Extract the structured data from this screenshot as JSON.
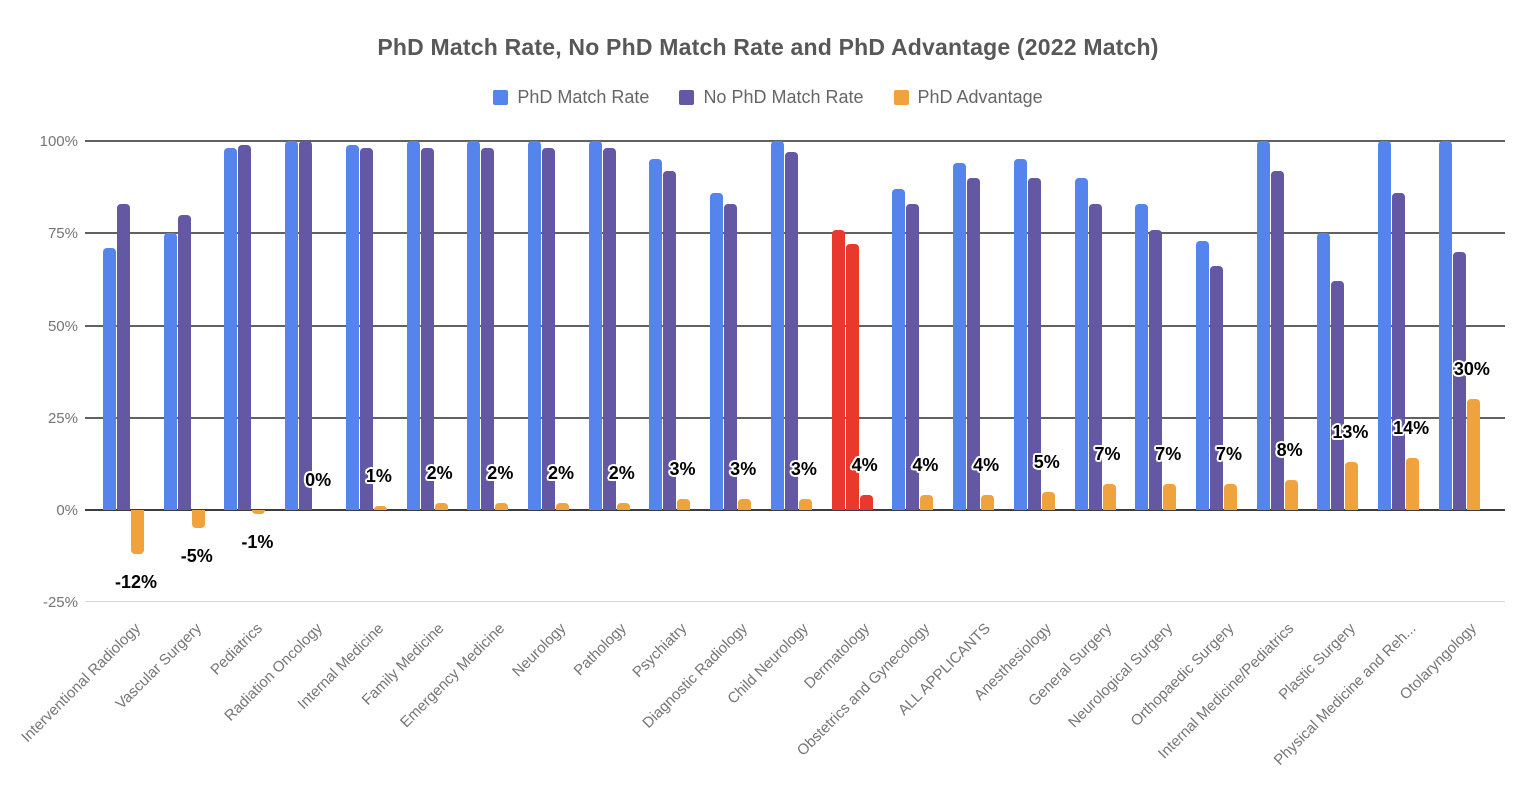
{
  "chart_data": {
    "type": "bar",
    "title": "PhD Match Rate, No PhD Match Rate and PhD Advantage (2022 Match)",
    "legend_position": "top",
    "grid": true,
    "categories": [
      "Interventional Radiology",
      "Vascular Surgery",
      "Pediatrics",
      "Radiation Oncology",
      "Internal Medicine",
      "Family Medicine",
      "Emergency Medicine",
      "Neurology",
      "Pathology",
      "Psychiatry",
      "Diagnostic Radiology",
      "Child Neurology",
      "Dermatology",
      "Obstetrics and Gynecology",
      "ALL APPLICANTS",
      "Anesthesiology",
      "General Surgery",
      "Neurological Surgery",
      "Orthopaedic Surgery",
      "Internal Medicine/Pediatrics",
      "Plastic Surgery",
      "Physical Medicine and Reh...",
      "Otolaryngology"
    ],
    "series": [
      {
        "name": "PhD Match Rate",
        "color": "#5585EC",
        "values": [
          71,
          75,
          98,
          100,
          99,
          100,
          100,
          100,
          100,
          95,
          86,
          100,
          76,
          87,
          94,
          95,
          90,
          83,
          73,
          100,
          75,
          100,
          100
        ]
      },
      {
        "name": "No PhD Match Rate",
        "color": "#6457A4",
        "values": [
          83,
          80,
          99,
          100,
          98,
          98,
          98,
          98,
          98,
          92,
          83,
          97,
          72,
          83,
          90,
          90,
          83,
          76,
          66,
          92,
          62,
          86,
          70
        ]
      },
      {
        "name": "PhD Advantage",
        "color": "#F0A23C",
        "values": [
          -12,
          -5,
          -1,
          0,
          1,
          2,
          2,
          2,
          2,
          3,
          3,
          3,
          4,
          4,
          4,
          5,
          7,
          7,
          7,
          8,
          13,
          14,
          30
        ],
        "data_labels": [
          "-12%",
          "-5%",
          "-1%",
          "0%",
          "1%",
          "2%",
          "2%",
          "2%",
          "2%",
          "3%",
          "3%",
          "3%",
          "4%",
          "4%",
          "4%",
          "5%",
          "7%",
          "7%",
          "7%",
          "8%",
          "13%",
          "14%",
          "30%"
        ]
      }
    ],
    "highlight": {
      "category": "Dermatology",
      "index": 12,
      "color": "#E8392C"
    },
    "y_axis": {
      "min": -25,
      "max": 100,
      "tick_values": [
        100,
        75,
        50,
        25,
        0,
        -25
      ],
      "tick_labels": [
        "100%",
        "75%",
        "50%",
        "25%",
        "0%",
        "-25%"
      ]
    },
    "x_axis": {
      "label_rotation_deg": -45
    }
  }
}
